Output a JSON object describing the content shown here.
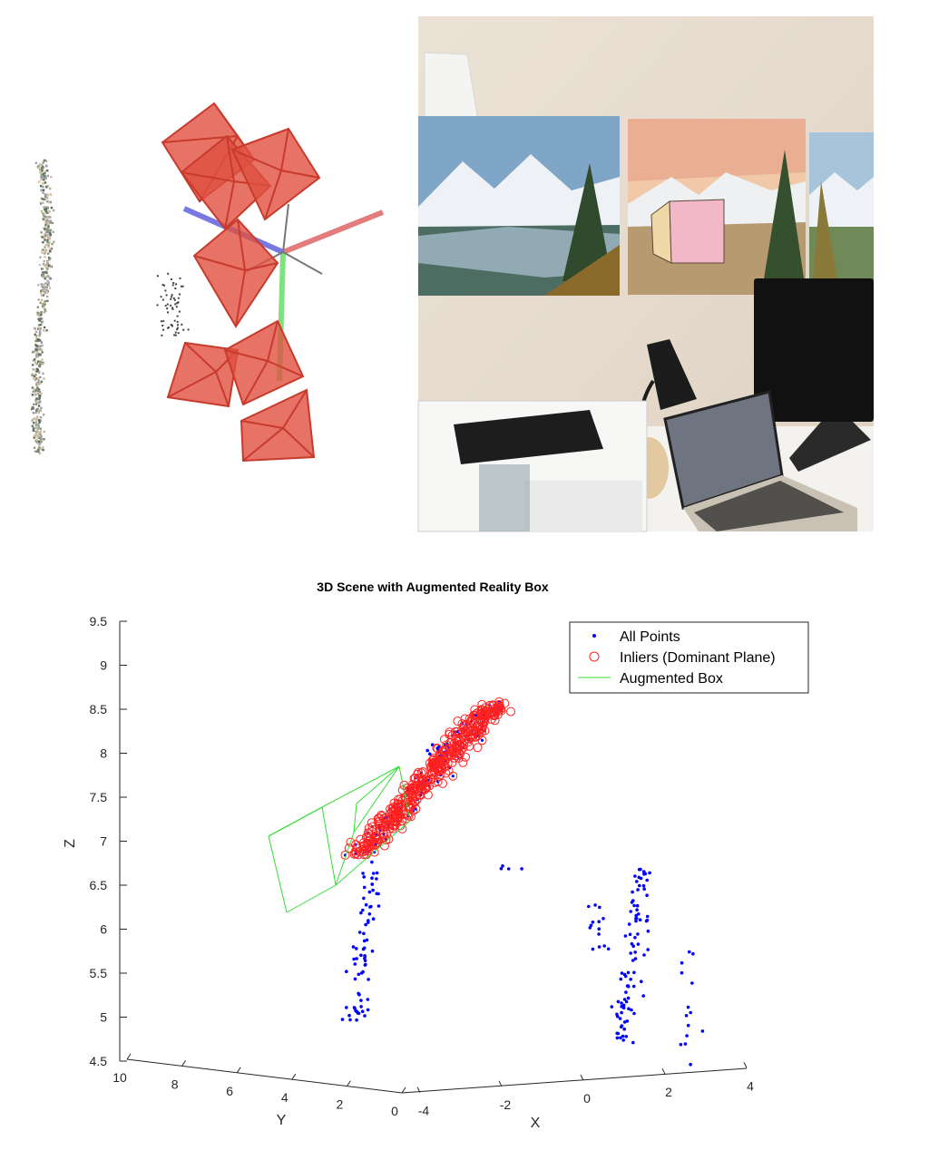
{
  "colors": {
    "points": "#0000ff",
    "inliers": "#ff2020",
    "box": "#33dd33",
    "camera": "#e05040",
    "axis_red": "#e07070",
    "axis_blue": "#6a6ae0",
    "axis_green": "#70e070",
    "ar_box_front": "#f2b8c8",
    "ar_box_side": "#f0d8a8"
  },
  "top_panels": {
    "left_panel": "point-cloud-side-view",
    "middle_panel": "camera-poses-view",
    "right_panel": "photo-with-ar-box"
  },
  "chart_data": {
    "type": "scatter",
    "title": "3D Scene with Augmented Reality Box",
    "xlabel": "X",
    "ylabel": "Y",
    "zlabel": "Z",
    "xlim": [
      -4,
      4
    ],
    "ylim": [
      0,
      10
    ],
    "zlim": [
      4.5,
      9.5
    ],
    "x_ticks": [
      "-4",
      "-2",
      "0",
      "2",
      "4"
    ],
    "y_ticks": [
      "10",
      "8",
      "6",
      "4",
      "2",
      "0"
    ],
    "z_ticks": [
      "9.5",
      "9",
      "8.5",
      "8",
      "7.5",
      "7",
      "6.5",
      "6",
      "5.5",
      "5",
      "4.5"
    ],
    "legend": {
      "position": "top-right",
      "entries": [
        "All Points",
        "Inliers (Dominant Plane)",
        "Augmented Box"
      ]
    },
    "series": [
      {
        "name": "Inliers (Dominant Plane)",
        "marker": "circle",
        "plane_start": {
          "x": 2.8,
          "y": 8.4,
          "z": 6.7
        },
        "plane_end": {
          "x": 1.2,
          "y": 1.0,
          "z": 8.75
        }
      },
      {
        "name": "All Points",
        "marker": "dot",
        "outlier_clusters": [
          {
            "cx": 3.5,
            "cy": -2.5,
            "z": [
              4.7,
              6.0
            ]
          },
          {
            "cx": -0.5,
            "cy": 3.5,
            "z": [
              5.1,
              6.9
            ]
          },
          {
            "cx": 3.0,
            "cy": -0.8,
            "z": [
              4.9,
              6.9
            ]
          },
          {
            "cx": 3.4,
            "cy": 0.6,
            "z": [
              5.9,
              6.4
            ]
          },
          {
            "cx": 1.6,
            "cy": 3.6,
            "z": [
              7.9,
              8.2
            ]
          },
          {
            "cx": 2.7,
            "cy": 2.8,
            "z": [
              6.7,
              6.8
            ]
          }
        ]
      },
      {
        "name": "Augmented Box",
        "edges": "wireframe"
      }
    ]
  }
}
